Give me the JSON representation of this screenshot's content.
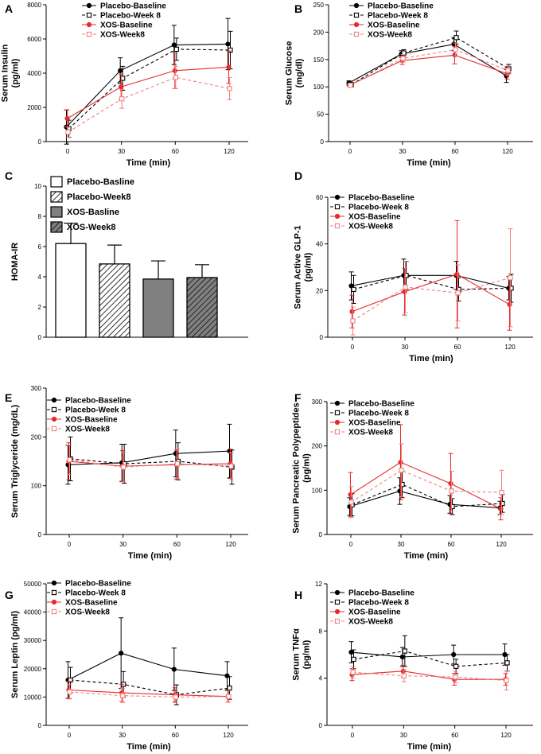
{
  "figure": {
    "colors": {
      "placebo": "#000000",
      "xos": "#e8292b",
      "xos_light": "#f08080",
      "bar_gray": "#808080"
    }
  },
  "chart_data": [
    {
      "id": "A",
      "letter": "A",
      "type": "line",
      "xlabel": "Time (min)",
      "ylabel": "Serum Insulin\n(pg/ml)",
      "x": [
        0,
        30,
        60,
        120
      ],
      "xticks": [
        "0",
        "30",
        "60",
        "120"
      ],
      "ylim": [
        0,
        8000
      ],
      "yticks": [
        0,
        2000,
        4000,
        6000,
        8000
      ],
      "legend": [
        "Placebo-Baseline",
        "Placebo-Week 8",
        "XOS-Baseline",
        "XOS-Week8"
      ],
      "series": [
        {
          "name": "Placebo-Baseline",
          "values": [
            850,
            4150,
            5650,
            5700
          ],
          "errors": [
            1000,
            750,
            1150,
            1500
          ]
        },
        {
          "name": "Placebo-Week 8",
          "values": [
            750,
            3700,
            5400,
            5350
          ],
          "errors": [
            500,
            700,
            650,
            1100
          ]
        },
        {
          "name": "XOS-Baseline",
          "values": [
            1350,
            3200,
            4150,
            4350
          ],
          "errors": [
            500,
            750,
            1050,
            950
          ]
        },
        {
          "name": "XOS-Week8",
          "values": [
            550,
            2500,
            3750,
            3100
          ],
          "errors": [
            300,
            550,
            650,
            650
          ]
        }
      ]
    },
    {
      "id": "B",
      "letter": "B",
      "type": "line",
      "xlabel": "Time (min)",
      "ylabel": "Serum Glucose\n(mg/dl)",
      "x": [
        0,
        30,
        60,
        120
      ],
      "xticks": [
        "0",
        "30",
        "60",
        "120"
      ],
      "ylim": [
        0,
        250
      ],
      "yticks": [
        0,
        50,
        100,
        150,
        200,
        250
      ],
      "legend": [
        "Placebo-Baseline",
        "Placebo-Week 8",
        "XOS-Baseline",
        "XOS-Week8"
      ],
      "series": [
        {
          "name": "Placebo-Baseline",
          "values": [
            107,
            160,
            178,
            120
          ],
          "errors": [
            4,
            6,
            12,
            12
          ]
        },
        {
          "name": "Placebo-Week 8",
          "values": [
            104,
            162,
            190,
            133
          ],
          "errors": [
            4,
            6,
            12,
            8
          ]
        },
        {
          "name": "XOS-Baseline",
          "values": [
            103,
            148,
            158,
            124
          ],
          "errors": [
            3,
            7,
            16,
            10
          ]
        },
        {
          "name": "XOS-Week8",
          "values": [
            103,
            152,
            168,
            130
          ],
          "errors": [
            3,
            7,
            12,
            8
          ]
        }
      ]
    },
    {
      "id": "C",
      "letter": "C",
      "type": "bar",
      "xlabel": "",
      "ylabel": "HOMA-IR",
      "ylim": [
        0,
        10
      ],
      "yticks": [
        0,
        2,
        4,
        6,
        8,
        10
      ],
      "categories": [
        "Placebo-Basline",
        "Placebo-Week8",
        "XOS-Basline",
        "XOS-Week8"
      ],
      "legend": [
        "Placebo-Basline",
        "Placebo-Week8",
        "XOS-Basline",
        "XOS-Week8"
      ],
      "values": [
        6.2,
        4.85,
        3.85,
        3.95
      ],
      "errors": [
        1.35,
        1.25,
        1.2,
        0.85
      ]
    },
    {
      "id": "D",
      "letter": "D",
      "type": "line",
      "xlabel": "Time (min)",
      "ylabel": "Serum Active GLP-1\n(pg/ml)",
      "x": [
        0,
        30,
        60,
        120
      ],
      "xticks": [
        "0",
        "30",
        "60",
        "120"
      ],
      "ylim": [
        0,
        60
      ],
      "yticks": [
        0,
        20,
        40,
        60
      ],
      "legend": [
        "Placebo-Baseline",
        "Placebo-Week 8",
        "XOS-Baseline",
        "XOS-Week8"
      ],
      "series": [
        {
          "name": "Placebo-Baseline",
          "values": [
            22,
            26.5,
            26.5,
            21
          ],
          "errors": [
            6,
            7,
            6,
            5
          ]
        },
        {
          "name": "Placebo-Week 8",
          "values": [
            20.5,
            26.5,
            20.5,
            21
          ],
          "errors": [
            6,
            6,
            5,
            6
          ]
        },
        {
          "name": "XOS-Baseline",
          "values": [
            11,
            19.5,
            27,
            14
          ],
          "errors": [
            7,
            10,
            23,
            11
          ]
        },
        {
          "name": "XOS-Week8",
          "values": [
            7,
            21.5,
            19,
            25.5
          ],
          "errors": [
            6,
            11,
            12,
            21
          ]
        }
      ]
    },
    {
      "id": "E",
      "letter": "E",
      "type": "line",
      "xlabel": "Time (min)",
      "ylabel": "Serum Triglyceride (mg/dL)",
      "x": [
        0,
        30,
        60,
        120
      ],
      "xticks": [
        "0",
        "30",
        "60",
        "120"
      ],
      "ylim": [
        0,
        300
      ],
      "yticks": [
        0,
        100,
        200,
        300
      ],
      "legend": [
        "Placebo-Baseline",
        "Placebo-Week 8",
        "XOS-Baseline",
        "XOS-Week8"
      ],
      "series": [
        {
          "name": "Placebo-Baseline",
          "values": [
            143,
            147,
            166,
            171
          ],
          "errors": [
            40,
            38,
            48,
            55
          ]
        },
        {
          "name": "Placebo-Week 8",
          "values": [
            155,
            145,
            150,
            138
          ],
          "errors": [
            45,
            40,
            38,
            35
          ]
        },
        {
          "name": "XOS-Baseline",
          "values": [
            150,
            140,
            143,
            145
          ],
          "errors": [
            38,
            32,
            30,
            30
          ]
        },
        {
          "name": "XOS-Week8",
          "values": [
            153,
            138,
            145,
            140
          ],
          "errors": [
            30,
            30,
            30,
            28
          ]
        }
      ]
    },
    {
      "id": "F",
      "letter": "F",
      "type": "line",
      "xlabel": "Time (min)",
      "ylabel": "Serum Pancreatic Polypeptides\n(pg/ml)",
      "x": [
        0,
        30,
        60,
        120
      ],
      "xticks": [
        "0",
        "30",
        "60",
        "120"
      ],
      "ylim": [
        0,
        300
      ],
      "yticks": [
        0,
        100,
        200,
        300
      ],
      "legend": [
        "Placebo-Baseline",
        "Placebo-Week 8",
        "XOS-Baseline",
        "XOS-Week8"
      ],
      "series": [
        {
          "name": "Placebo-Baseline",
          "values": [
            63,
            98,
            68,
            60
          ],
          "errors": [
            20,
            30,
            20,
            15
          ]
        },
        {
          "name": "Placebo-Week 8",
          "values": [
            67,
            113,
            63,
            70
          ],
          "errors": [
            25,
            30,
            18,
            20
          ]
        },
        {
          "name": "XOS-Baseline",
          "values": [
            90,
            163,
            115,
            58
          ],
          "errors": [
            50,
            85,
            68,
            25
          ]
        },
        {
          "name": "XOS-Week8",
          "values": [
            73,
            145,
            98,
            95
          ],
          "errors": [
            35,
            60,
            45,
            50
          ]
        }
      ]
    },
    {
      "id": "G",
      "letter": "G",
      "type": "line",
      "xlabel": "Time (min)",
      "ylabel": "Serum Leptin (pg/ml)",
      "x": [
        0,
        30,
        60,
        120
      ],
      "xticks": [
        "0",
        "30",
        "60",
        "120"
      ],
      "ylim": [
        0,
        50000
      ],
      "yticks": [
        0,
        10000,
        20000,
        30000,
        40000,
        50000
      ],
      "legend": [
        "Placebo-Baseline",
        "Placebo-Week 8",
        "XOS-Baseline",
        "XOS-Week8"
      ],
      "series": [
        {
          "name": "Placebo-Baseline",
          "values": [
            16000,
            25500,
            19800,
            17500
          ],
          "errors": [
            6500,
            12500,
            7500,
            5000
          ]
        },
        {
          "name": "Placebo-Week 8",
          "values": [
            16000,
            14500,
            10800,
            13200
          ],
          "errors": [
            4500,
            4500,
            3500,
            4000
          ]
        },
        {
          "name": "XOS-Baseline",
          "values": [
            12500,
            11500,
            10800,
            10200
          ],
          "errors": [
            3000,
            3000,
            2500,
            2000
          ]
        },
        {
          "name": "XOS-Week8",
          "values": [
            11800,
            10500,
            10000,
            10200
          ],
          "errors": [
            2500,
            2500,
            2000,
            2000
          ]
        }
      ]
    },
    {
      "id": "H",
      "letter": "H",
      "type": "line",
      "xlabel": "Time (min)",
      "ylabel": "Serum TNFα\n(pg/ml)",
      "x": [
        0,
        30,
        60,
        120
      ],
      "xticks": [
        "0",
        "30",
        "60",
        "120"
      ],
      "ylim": [
        0,
        12
      ],
      "yticks": [
        0,
        4,
        8,
        12
      ],
      "legend": [
        "Placebo-Baseline",
        "Placebo-Week 8",
        "XOS-Baseline",
        "XOS-Week8"
      ],
      "series": [
        {
          "name": "Placebo-Baseline",
          "values": [
            6.2,
            5.8,
            6.0,
            6.0
          ],
          "errors": [
            0.9,
            0.8,
            0.8,
            0.9
          ]
        },
        {
          "name": "Placebo-Week 8",
          "values": [
            5.6,
            6.3,
            5.0,
            5.3
          ],
          "errors": [
            0.8,
            1.3,
            0.6,
            0.7
          ]
        },
        {
          "name": "XOS-Baseline",
          "values": [
            4.3,
            4.6,
            3.9,
            3.9
          ],
          "errors": [
            0.5,
            0.5,
            0.5,
            0.5
          ]
        },
        {
          "name": "XOS-Week8",
          "values": [
            4.5,
            4.2,
            4.1,
            3.8
          ],
          "errors": [
            0.5,
            0.5,
            0.5,
            0.8
          ]
        }
      ]
    }
  ]
}
